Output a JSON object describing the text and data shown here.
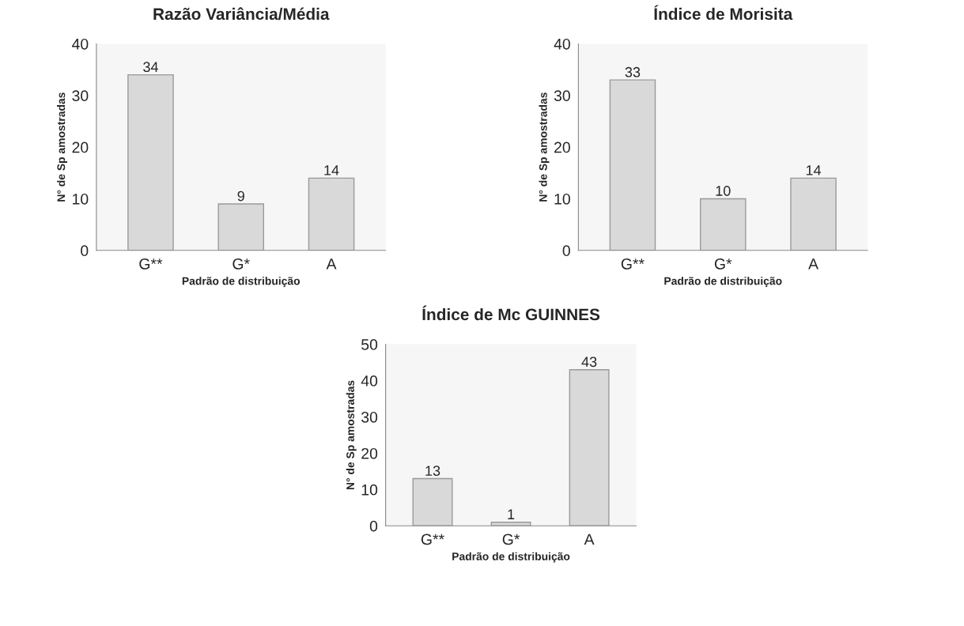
{
  "chart_data": [
    {
      "type": "bar",
      "title": "Razão Variância/Média",
      "xlabel": "Padrão de distribuição",
      "ylabel": "N° de Sp amostradas",
      "categories": [
        "G**",
        "G*",
        "A"
      ],
      "values": [
        34,
        9,
        14
      ],
      "color": "#d9d9d9",
      "ylim": [
        0,
        40
      ],
      "yticks": [
        0,
        10,
        20,
        30,
        40
      ],
      "data_labels": true,
      "grid": false
    },
    {
      "type": "bar",
      "title": "Índice de Morisita",
      "xlabel": "Padrão de distribuição",
      "ylabel": "N° de Sp amostradas",
      "categories": [
        "G**",
        "G*",
        "A"
      ],
      "values": [
        33,
        10,
        14
      ],
      "color": "#d9d9d9",
      "ylim": [
        0,
        40
      ],
      "yticks": [
        0,
        10,
        20,
        30,
        40
      ],
      "data_labels": true,
      "grid": false
    },
    {
      "type": "bar",
      "title": "Índice de Mc GUINNES",
      "xlabel": "Padrão de distribuição",
      "ylabel": "N° de Sp amostradas",
      "categories": [
        "G**",
        "G*",
        "A"
      ],
      "values": [
        13,
        1,
        43
      ],
      "color": "#d9d9d9",
      "ylim": [
        0,
        50
      ],
      "yticks": [
        0,
        10,
        20,
        30,
        40,
        50
      ],
      "data_labels": true,
      "grid": false
    }
  ]
}
